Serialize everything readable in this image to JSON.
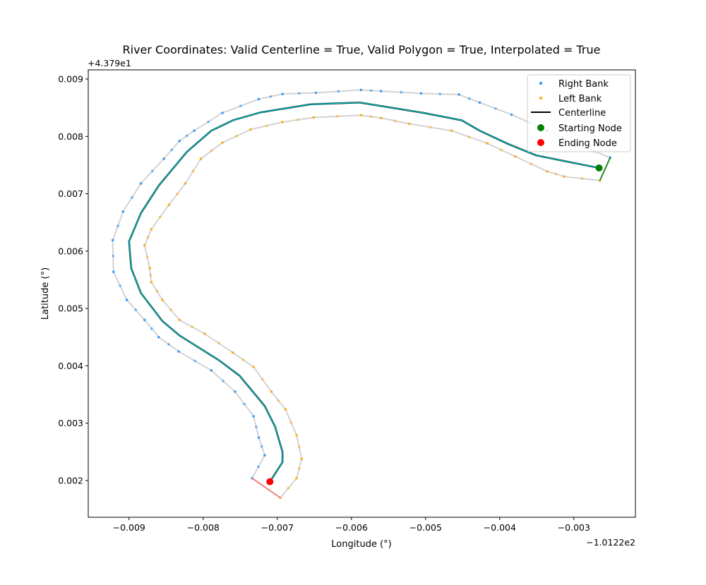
{
  "chart_data": {
    "type": "line",
    "title": "River Coordinates: Valid Centerline = True, Valid Polygon = True, Interpolated = True",
    "xlabel": "Longitude (°)",
    "ylabel": "Latitude (°)",
    "x_offset_label": "−1.0122e2",
    "y_offset_label": "+4.379e1",
    "xlim": [
      -0.00955,
      -0.00217
    ],
    "ylim": [
      0.00136,
      0.00916
    ],
    "xticks": [
      -0.009,
      -0.008,
      -0.007,
      -0.006,
      -0.005,
      -0.004,
      -0.003
    ],
    "xtick_labels": [
      "−0.009",
      "−0.008",
      "−0.007",
      "−0.006",
      "−0.005",
      "−0.004",
      "−0.003"
    ],
    "yticks": [
      0.002,
      0.003,
      0.004,
      0.005,
      0.006,
      0.007,
      0.008,
      0.009
    ],
    "ytick_labels": [
      "0.002",
      "0.003",
      "0.004",
      "0.005",
      "0.006",
      "0.007",
      "0.008",
      "0.009"
    ],
    "grid": false,
    "legend_position": "top-right",
    "legend": [
      "Right Bank",
      "Left Bank",
      "Centerline",
      "Starting Node",
      "Ending Node"
    ],
    "colors": {
      "right_bank": "#1e90ff",
      "left_bank": "#ffa500",
      "bank_line": "#d3d3d3",
      "centerline": "#00c8c8",
      "centerline_under": "#000000",
      "start": "#008000",
      "end": "#ff0000",
      "start_segment": "#228b22",
      "end_segment": "#f08080"
    },
    "right_bank": {
      "x": [
        -0.00251,
        -0.00294,
        -0.00336,
        -0.00384,
        -0.00427,
        -0.00455,
        -0.00506,
        -0.0056,
        -0.00587,
        -0.00648,
        -0.00693,
        -0.00725,
        -0.00774,
        -0.00812,
        -0.00832,
        -0.00853,
        -0.00884,
        -0.00908,
        -0.00922,
        -0.00921,
        -0.00903,
        -0.00879,
        -0.0086,
        -0.00833,
        -0.00789,
        -0.00757,
        -0.00732,
        -0.00725,
        -0.00717,
        -0.00734
      ],
      "y": [
        0.00763,
        0.00785,
        0.0081,
        0.00838,
        0.00859,
        0.00873,
        0.00875,
        0.00879,
        0.00881,
        0.00876,
        0.00874,
        0.00865,
        0.00841,
        0.0081,
        0.00792,
        0.00761,
        0.00718,
        0.00669,
        0.00619,
        0.00564,
        0.00515,
        0.0048,
        0.0045,
        0.00425,
        0.00392,
        0.00355,
        0.00312,
        0.00275,
        0.00244,
        0.00204
      ]
    },
    "left_bank": {
      "x": [
        -0.00265,
        -0.00313,
        -0.00336,
        -0.00379,
        -0.00417,
        -0.00465,
        -0.00522,
        -0.0056,
        -0.00587,
        -0.00651,
        -0.00693,
        -0.00736,
        -0.00774,
        -0.00803,
        -0.00824,
        -0.00846,
        -0.0087,
        -0.00879,
        -0.00872,
        -0.0087,
        -0.00855,
        -0.00832,
        -0.00798,
        -0.0076,
        -0.00732,
        -0.00708,
        -0.00689,
        -0.00674,
        -0.00667,
        -0.00674,
        -0.00696
      ],
      "y": [
        0.00723,
        0.0073,
        0.00739,
        0.00765,
        0.00788,
        0.0081,
        0.00822,
        0.00832,
        0.00837,
        0.00833,
        0.00825,
        0.00812,
        0.00789,
        0.00761,
        0.00718,
        0.00681,
        0.00638,
        0.0061,
        0.0057,
        0.00546,
        0.00515,
        0.0048,
        0.00456,
        0.00423,
        0.00398,
        0.00355,
        0.00324,
        0.00279,
        0.00238,
        0.00204,
        0.0017
      ]
    },
    "centerline": {
      "x": [
        -0.00266,
        -0.00313,
        -0.00351,
        -0.00389,
        -0.00427,
        -0.00451,
        -0.00503,
        -0.00589,
        -0.00655,
        -0.00722,
        -0.0076,
        -0.00789,
        -0.00822,
        -0.0086,
        -0.00884,
        -0.009,
        -0.00897,
        -0.00884,
        -0.00855,
        -0.00832,
        -0.00779,
        -0.00751,
        -0.00717,
        -0.00703,
        -0.00693,
        -0.00693,
        -0.0071
      ],
      "y": [
        0.00745,
        0.00757,
        0.00767,
        0.00787,
        0.0081,
        0.00828,
        0.00841,
        0.00859,
        0.00856,
        0.00842,
        0.00828,
        0.0081,
        0.00773,
        0.00714,
        0.00666,
        0.00617,
        0.0057,
        0.00527,
        0.00478,
        0.00453,
        0.0041,
        0.00383,
        0.0033,
        0.00294,
        0.0025,
        0.00232,
        0.00198
      ]
    },
    "starting_node": {
      "x": -0.00266,
      "y": 0.00745
    },
    "ending_node": {
      "x": -0.0071,
      "y": 0.00198
    }
  }
}
